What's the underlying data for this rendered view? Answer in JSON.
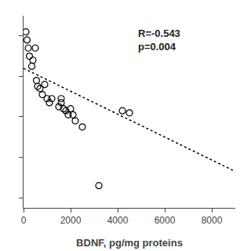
{
  "chart_data": {
    "type": "scatter",
    "xlabel": "BDNF, pg/mg proteins",
    "xlim": [
      0,
      9000
    ],
    "ylim": [
      -50,
      900
    ],
    "xticks": [
      0,
      2000,
      4000,
      6000,
      8000
    ],
    "yticks": [
      0,
      200,
      400,
      600,
      800
    ],
    "tick_labels": "x",
    "grid": false,
    "series": [
      {
        "type": "scatter",
        "x": [
          100,
          150,
          200,
          250,
          350,
          400,
          500,
          550,
          600,
          700,
          800,
          900,
          1000,
          1100,
          1200,
          1500,
          1600,
          1600,
          1700,
          1800,
          1900,
          2000,
          2100,
          2200,
          2500,
          3200,
          4200,
          4500
        ],
        "values": [
          820,
          780,
          740,
          700,
          650,
          680,
          740,
          580,
          550,
          540,
          510,
          560,
          490,
          470,
          490,
          450,
          490,
          470,
          440,
          430,
          410,
          440,
          410,
          380,
          350,
          60,
          430,
          420
        ],
        "color": "black",
        "marker": "circle-open"
      },
      {
        "type": "line",
        "x": [
          0,
          9000
        ],
        "values": [
          640,
          130
        ],
        "color": "black",
        "line_style": "dotted"
      }
    ],
    "annotations": [
      {
        "text": "R=-0.543\np=0.004",
        "x": 4800,
        "y": 850
      }
    ]
  }
}
